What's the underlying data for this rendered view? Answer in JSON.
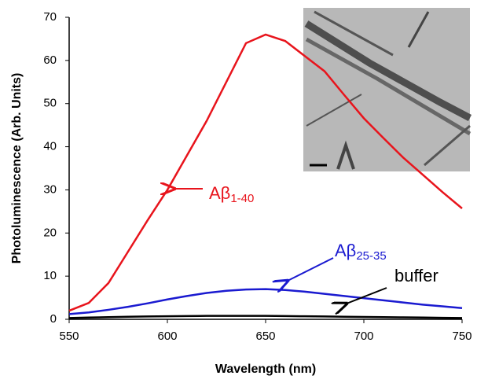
{
  "chart_data": {
    "type": "line",
    "x_label": "Wavelength (nm)",
    "y_label": "Photoluminescence (Arb. Units)",
    "x": [
      550,
      560,
      570,
      580,
      590,
      600,
      610,
      620,
      630,
      640,
      650,
      660,
      670,
      680,
      690,
      700,
      710,
      720,
      730,
      740,
      750
    ],
    "series": [
      {
        "color": "#e8141c",
        "values": [
          2,
          3.8,
          8.4,
          15.7,
          23,
          30,
          38,
          46,
          55,
          64,
          66,
          64.5,
          61,
          57.5,
          52,
          46.6,
          42,
          37.5,
          33.5,
          29.5,
          25.7
        ]
      },
      {
        "color": "#1a1ad0",
        "values": [
          1.2,
          1.6,
          2.2,
          2.9,
          3.7,
          4.6,
          5.4,
          6.1,
          6.6,
          6.9,
          7,
          6.8,
          6.4,
          5.9,
          5.4,
          4.9,
          4.4,
          3.9,
          3.4,
          3.0,
          2.6
        ]
      },
      {
        "color": "#000000",
        "values": [
          0.3,
          0.4,
          0.5,
          0.6,
          0.65,
          0.7,
          0.75,
          0.8,
          0.8,
          0.8,
          0.8,
          0.75,
          0.7,
          0.65,
          0.6,
          0.55,
          0.5,
          0.45,
          0.4,
          0.35,
          0.3
        ]
      }
    ],
    "annotations": [
      {
        "text": "Aβ",
        "sub": "1-40",
        "color": "#e8141c"
      },
      {
        "text": "Aβ",
        "sub": "25-35",
        "color": "#1a1ad0"
      },
      {
        "text": "buffer",
        "color": "#000000"
      }
    ],
    "xlim": [
      550,
      750
    ],
    "xticks": [
      550,
      600,
      650,
      700,
      750
    ],
    "ylim": [
      0,
      70
    ],
    "yticks": [
      0,
      10,
      20,
      30,
      40,
      50,
      60,
      70
    ]
  }
}
